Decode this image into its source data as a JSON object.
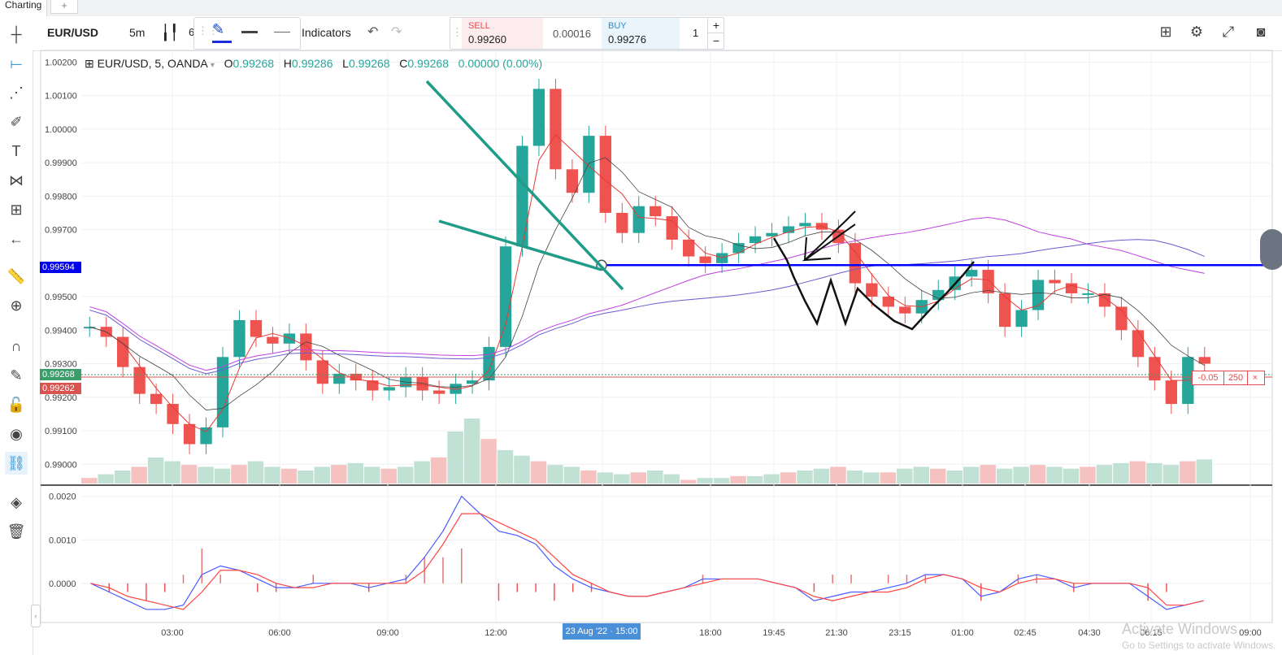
{
  "tabs": {
    "active": "Charting",
    "add": "+"
  },
  "toolbar": {
    "symbol": "EUR/USD",
    "interval": "5m",
    "interval_extra": "6",
    "indicators": "Indicators",
    "sell_label": "SELL",
    "sell_price": "0.99260",
    "spread": "0.00016",
    "buy_label": "BUY",
    "buy_price": "0.99276",
    "quantity": "1",
    "plus": "+",
    "minus": "−"
  },
  "legend": {
    "title": "EUR/USD, 5, OANDA",
    "o_label": "O",
    "o": "0.99268",
    "h_label": "H",
    "h": "0.99286",
    "l_label": "L",
    "l": "0.99268",
    "c_label": "C",
    "c": "0.99268",
    "change": "0.00000 (0.00%)"
  },
  "price_tags": {
    "level": "0.99594",
    "bid": "0.99268",
    "ask": "0.99262"
  },
  "order_line": {
    "pnl": "-0.05",
    "qty": "250",
    "close": "×"
  },
  "crosshair_date": "23 Aug '22 · 15:00",
  "watermark": {
    "line1": "Activate Windows",
    "line2": "Go to Settings to activate Windows."
  },
  "colors": {
    "up": "#26a69a",
    "down": "#ef5350",
    "level": "#0000ff",
    "trendline": "#1e9c87"
  },
  "chart_data": [
    {
      "type": "line",
      "title": "EUR/USD, 5, OANDA",
      "x_ticks": [
        "03:00",
        "06:00",
        "09:00",
        "12:00",
        "23 Aug '22 · 15:00",
        "18:00",
        "19:45",
        "21:30",
        "23:15",
        "01:00",
        "02:45",
        "04:30",
        "06:15",
        "09:00"
      ],
      "y_ticks": [
        "1.00200",
        "1.00100",
        "1.00000",
        "0.99900",
        "0.99800",
        "0.99700",
        "0.99500",
        "0.99400",
        "0.99300",
        "0.99200",
        "0.99100",
        "0.99000"
      ],
      "ylim": [
        0.9894,
        1.0023
      ],
      "horizontal_level": 0.99594,
      "series": [
        {
          "values": [
            0.9941,
            0.9938,
            0.9929,
            0.9921,
            0.9918,
            0.9912,
            0.9906,
            0.9911,
            0.9932,
            0.9943,
            0.9938,
            0.9936,
            0.9939,
            0.9931,
            0.9924,
            0.9927,
            0.9925,
            0.9922,
            0.9923,
            0.9926,
            0.9922,
            0.9921,
            0.9924,
            0.9925,
            0.9935,
            0.9965,
            0.9995,
            1.0012,
            0.9988,
            0.9981,
            0.9998,
            0.9975,
            0.9969,
            0.9977,
            0.9974,
            0.9967,
            0.9962,
            0.996,
            0.9963,
            0.9966,
            0.9968,
            0.9969,
            0.9971,
            0.9972,
            0.997,
            0.9966,
            0.9954,
            0.995,
            0.9947,
            0.9945,
            0.9949,
            0.9952,
            0.9956,
            0.9958,
            0.9951,
            0.9941,
            0.9946,
            0.9955,
            0.9954,
            0.9951,
            0.9951,
            0.9947,
            0.994,
            0.9932,
            0.9925,
            0.9918,
            0.9932,
            0.993
          ]
        }
      ]
    },
    {
      "type": "bar",
      "title": "Volume",
      "values": [
        3,
        5,
        7,
        9,
        14,
        12,
        10,
        9,
        8,
        10,
        12,
        9,
        8,
        7,
        9,
        10,
        11,
        9,
        8,
        9,
        12,
        14,
        28,
        35,
        24,
        18,
        15,
        12,
        10,
        9,
        7,
        6,
        5,
        6,
        7,
        5,
        2,
        3,
        3,
        4,
        4,
        5,
        6,
        7,
        8,
        9,
        7,
        6,
        6,
        8,
        9,
        8,
        7,
        9,
        10,
        8,
        9,
        10,
        9,
        8,
        9,
        10,
        11,
        12,
        11,
        10,
        12,
        13
      ]
    },
    {
      "type": "line",
      "title": "MACD",
      "y_ticks": [
        "0.0020",
        "0.0010",
        "0.0000"
      ],
      "ylim": [
        -0.0009,
        0.0022
      ],
      "series": [
        {
          "values": [
            0.0,
            -0.0002,
            -0.0004,
            -0.0006,
            -0.0006,
            -0.0005,
            0.0002,
            0.0004,
            0.0003,
            0.0001,
            -0.0001,
            -0.0001,
            0.0,
            0.0,
            0.0,
            -0.0001,
            0.0,
            0.0001,
            0.0006,
            0.0012,
            0.002,
            0.0016,
            0.0012,
            0.0011,
            0.0009,
            0.0004,
            0.0001,
            -0.0001,
            -0.0002,
            -0.0003,
            -0.0003,
            -0.0002,
            -0.0001,
            0.0001,
            0.0001,
            0.0001,
            0.0001,
            0.0,
            -0.0001,
            -0.0004,
            -0.0003,
            -0.0002,
            -0.0002,
            -0.0001,
            0.0,
            0.0002,
            0.0002,
            0.0001,
            -0.0003,
            -0.0002,
            0.0001,
            0.0002,
            0.0001,
            -0.0001,
            0.0,
            0.0,
            0.0,
            -0.0003,
            -0.0006,
            -0.0005,
            -0.0004
          ]
        },
        {
          "values": [
            0.0,
            -0.0001,
            -0.0003,
            -0.0004,
            -0.0005,
            -0.0006,
            -0.0002,
            0.0003,
            0.0003,
            0.0002,
            0.0,
            -0.0001,
            -0.0001,
            0.0,
            0.0,
            0.0,
            0.0,
            0.0,
            0.0003,
            0.0009,
            0.0016,
            0.0016,
            0.0014,
            0.0012,
            0.001,
            0.0006,
            0.0002,
            0.0,
            -0.0002,
            -0.0003,
            -0.0003,
            -0.0002,
            -0.0001,
            0.0,
            0.0001,
            0.0001,
            0.0001,
            0.0,
            -0.0001,
            -0.0003,
            -0.0004,
            -0.0003,
            -0.0002,
            -0.0002,
            -0.0001,
            0.0001,
            0.0002,
            0.0001,
            -0.0001,
            -0.0002,
            0.0,
            0.0001,
            0.0001,
            0.0,
            0.0,
            0.0,
            0.0,
            -0.0001,
            -0.0005,
            -0.0005,
            -0.0004
          ]
        }
      ]
    }
  ]
}
